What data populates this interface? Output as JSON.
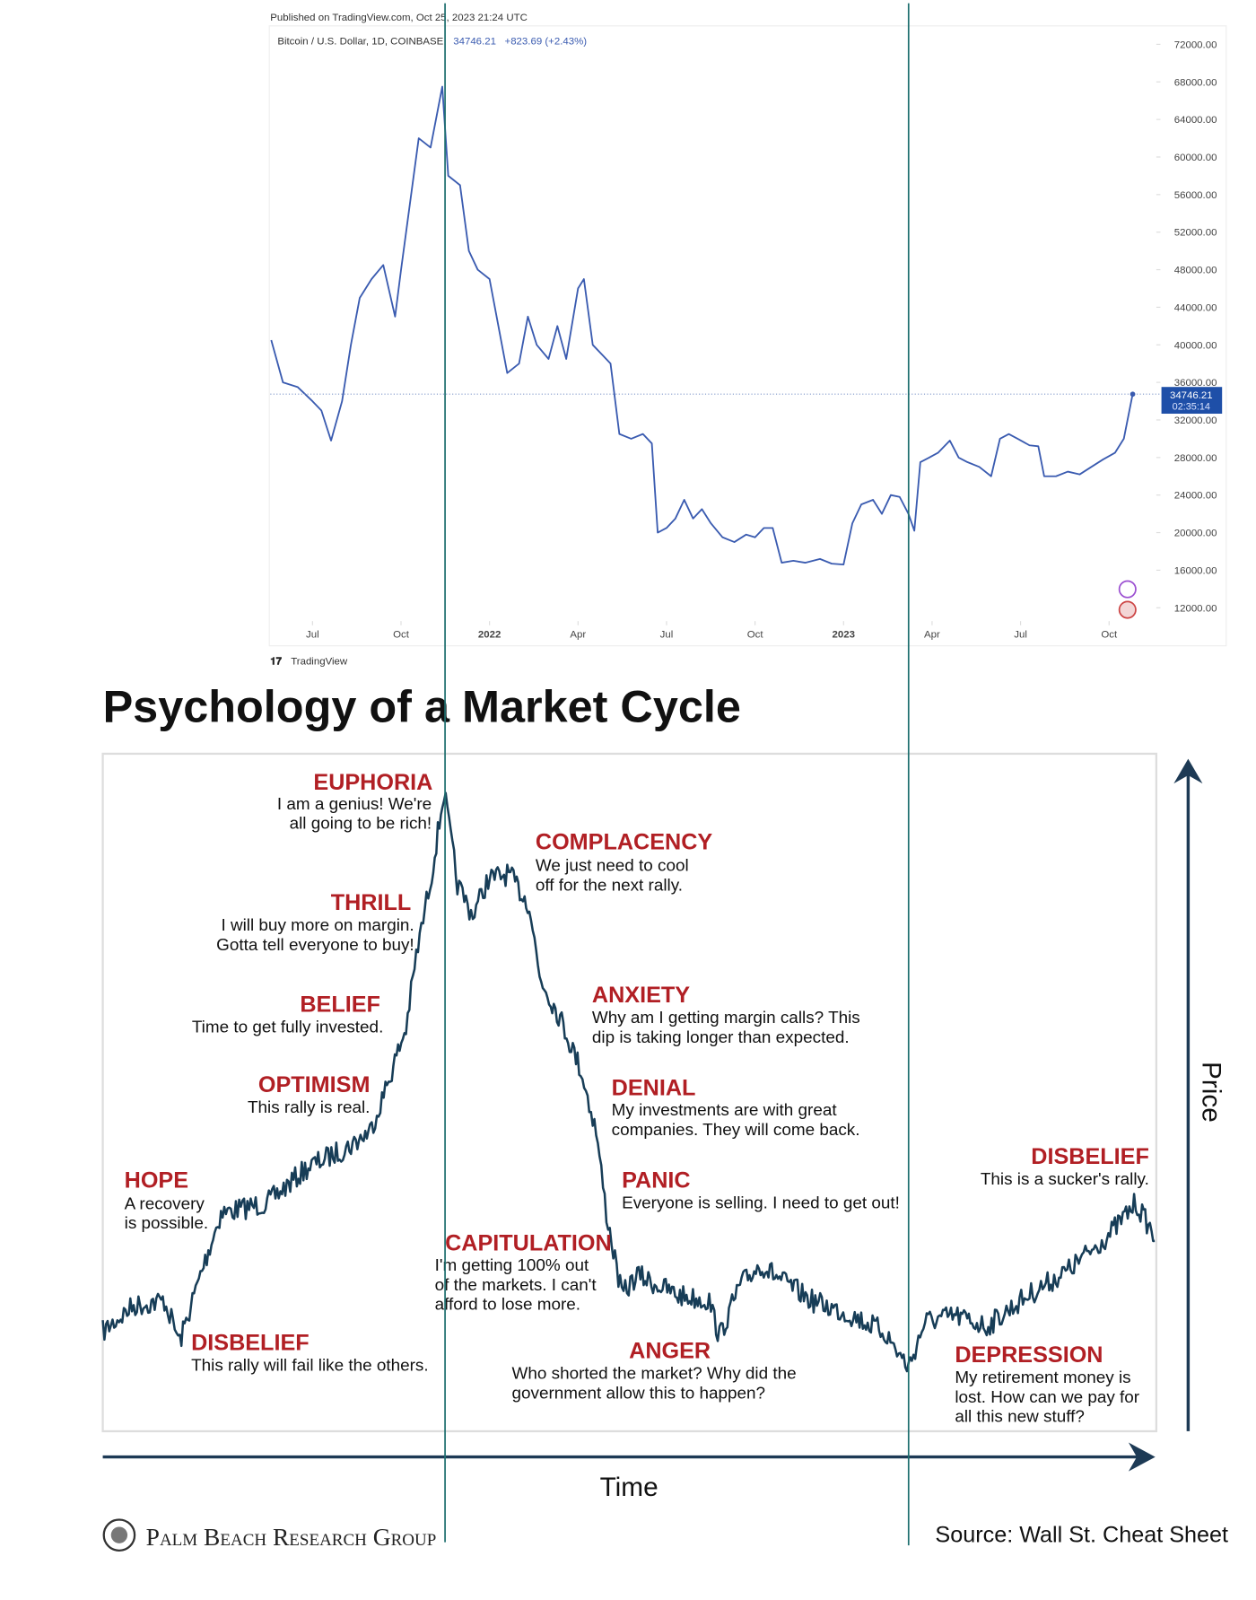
{
  "chart_data": {
    "type": "line",
    "published": "Published on TradingView.com, Oct 25, 2023 21:24 UTC",
    "change": "+823.69 (+2.43%)",
    "timer": "02:35:14",
    "brand": "TradingView",
    "color": "#3a5bb0",
    "series": [
      {
        "name": "Bitcoin / U.S. Dollar, 1D, COINBASE",
        "color": "#3a5bb0",
        "x": [
          4.6,
          5.0,
          5.5,
          6.0,
          6.3,
          6.63,
          7.0,
          7.3,
          7.6,
          8.0,
          8.4,
          8.8,
          9.0,
          9.3,
          9.6,
          10.0,
          10.4,
          10.6,
          11.0,
          11.3,
          11.6,
          12.0,
          12.3,
          12.6,
          13.0,
          13.3,
          13.6,
          14.0,
          14.3,
          14.6,
          15.0,
          15.2,
          15.5,
          15.8,
          16.1,
          16.4,
          16.8,
          17.2,
          17.5,
          17.7,
          18.0,
          18.3,
          18.6,
          18.9,
          19.2,
          19.5,
          19.9,
          20.3,
          20.7,
          21.0,
          21.3,
          21.6,
          21.9,
          22.3,
          22.7,
          23.2,
          23.6,
          24.0,
          24.3,
          24.6,
          25.0,
          25.3,
          25.6,
          25.9,
          26.2,
          26.4,
          26.6,
          26.9,
          27.2,
          27.6,
          27.9,
          28.2,
          28.6,
          29.0,
          29.3,
          29.6,
          29.9,
          30.3,
          30.6,
          30.8,
          31.2,
          31.6,
          32.0,
          32.4,
          32.8,
          33.2,
          33.5,
          33.8
        ],
        "values": [
          40500,
          36000,
          35500,
          34000,
          33000,
          29800,
          34000,
          40000,
          45000,
          47000,
          48500,
          43000,
          48000,
          55000,
          62000,
          61000,
          67500,
          58000,
          57000,
          50000,
          48000,
          47000,
          42000,
          37000,
          38000,
          43000,
          40000,
          38500,
          42000,
          38500,
          46000,
          47000,
          40000,
          39000,
          38000,
          30500,
          30000,
          30500,
          29500,
          20000,
          20500,
          21500,
          23500,
          21500,
          22500,
          21000,
          19500,
          19000,
          19800,
          19500,
          20500,
          20500,
          16800,
          17000,
          16800,
          17200,
          16700,
          16600,
          21000,
          23000,
          23500,
          22000,
          24000,
          23800,
          22000,
          20200,
          27500,
          28000,
          28500,
          29800,
          28000,
          27500,
          27000,
          26000,
          30000,
          30500,
          30000,
          29300,
          29200,
          26000,
          26000,
          26500,
          26200,
          27000,
          27800,
          28500,
          30000,
          34746.21
        ]
      }
    ],
    "xlim": [
      4.57,
      34.6
    ],
    "xticks": [
      {
        "value": 6,
        "label": "Jul"
      },
      {
        "value": 9,
        "label": "Oct"
      },
      {
        "value": 12,
        "label": "2022"
      },
      {
        "value": 15,
        "label": "Apr"
      },
      {
        "value": 18,
        "label": "Jul"
      },
      {
        "value": 21,
        "label": "Oct"
      },
      {
        "value": 24,
        "label": "2023"
      },
      {
        "value": 27,
        "label": "Apr"
      },
      {
        "value": 30,
        "label": "Jul"
      },
      {
        "value": 33,
        "label": "Oct"
      }
    ],
    "ylim": [
      10500,
      74000
    ],
    "yticks": [
      {
        "value": 12000,
        "label": "12000.00"
      },
      {
        "value": 16000,
        "label": "16000.00"
      },
      {
        "value": 20000,
        "label": "20000.00"
      },
      {
        "value": 24000,
        "label": "24000.00"
      },
      {
        "value": 28000,
        "label": "28000.00"
      },
      {
        "value": 32000,
        "label": "32000.00"
      },
      {
        "value": 36000,
        "label": "36000.00"
      },
      {
        "value": 40000,
        "label": "40000.00"
      },
      {
        "value": 44000,
        "label": "44000.00"
      },
      {
        "value": 48000,
        "label": "48000.00"
      },
      {
        "value": 52000,
        "label": "52000.00"
      },
      {
        "value": 56000,
        "label": "56000.00"
      },
      {
        "value": 60000,
        "label": "60000.00"
      },
      {
        "value": 64000,
        "label": "64000.00"
      },
      {
        "value": 68000,
        "label": "68000.00"
      },
      {
        "value": 72000,
        "label": "72000.00"
      }
    ],
    "grid": false
  },
  "infographic": {
    "title": "Psychology of a Market Cycle",
    "stages": [
      {
        "name": "EUPHORIA",
        "text": [
          "I am a genius! We're",
          "all going to be rich!"
        ]
      },
      {
        "name": "COMPLACENCY",
        "text": [
          "We just need to cool",
          "off for the next rally."
        ]
      },
      {
        "name": "THRILL",
        "text": [
          "I will buy more on margin.",
          "Gotta tell everyone to buy!"
        ]
      },
      {
        "name": "BELIEF",
        "text": [
          "Time to get fully invested."
        ]
      },
      {
        "name": "ANXIETY",
        "text": [
          "Why am I getting margin calls? This",
          "dip is taking longer than expected."
        ]
      },
      {
        "name": "OPTIMISM",
        "text": [
          "This rally is real."
        ]
      },
      {
        "name": "DENIAL",
        "text": [
          "My investments are with great",
          "companies. They will come back."
        ]
      },
      {
        "name": "HOPE",
        "text": [
          "A recovery",
          "is possible."
        ]
      },
      {
        "name": "DISBELIEF",
        "text": [
          "This is a sucker's rally."
        ]
      },
      {
        "name": "PANIC",
        "text": [
          "Everyone is selling. I need to get out!"
        ]
      },
      {
        "name": "CAPITULATION",
        "text": [
          "I'm getting 100% out",
          "of the markets. I can't",
          "afford to lose more."
        ]
      },
      {
        "name": "DISBELIEF",
        "text": [
          "This rally will fail like the others."
        ]
      },
      {
        "name": "ANGER",
        "text": [
          "Who shorted the market? Why did the",
          "government allow this to happen?"
        ]
      },
      {
        "name": "DEPRESSION",
        "text": [
          "My retirement money is",
          "lost. How can we pay for",
          "all this new stuff?"
        ]
      }
    ],
    "y_axis": "Price",
    "x_axis": "Time",
    "publisher": "Palm Beach Research Group",
    "source": "Source: Wall St. Cheat Sheet"
  }
}
